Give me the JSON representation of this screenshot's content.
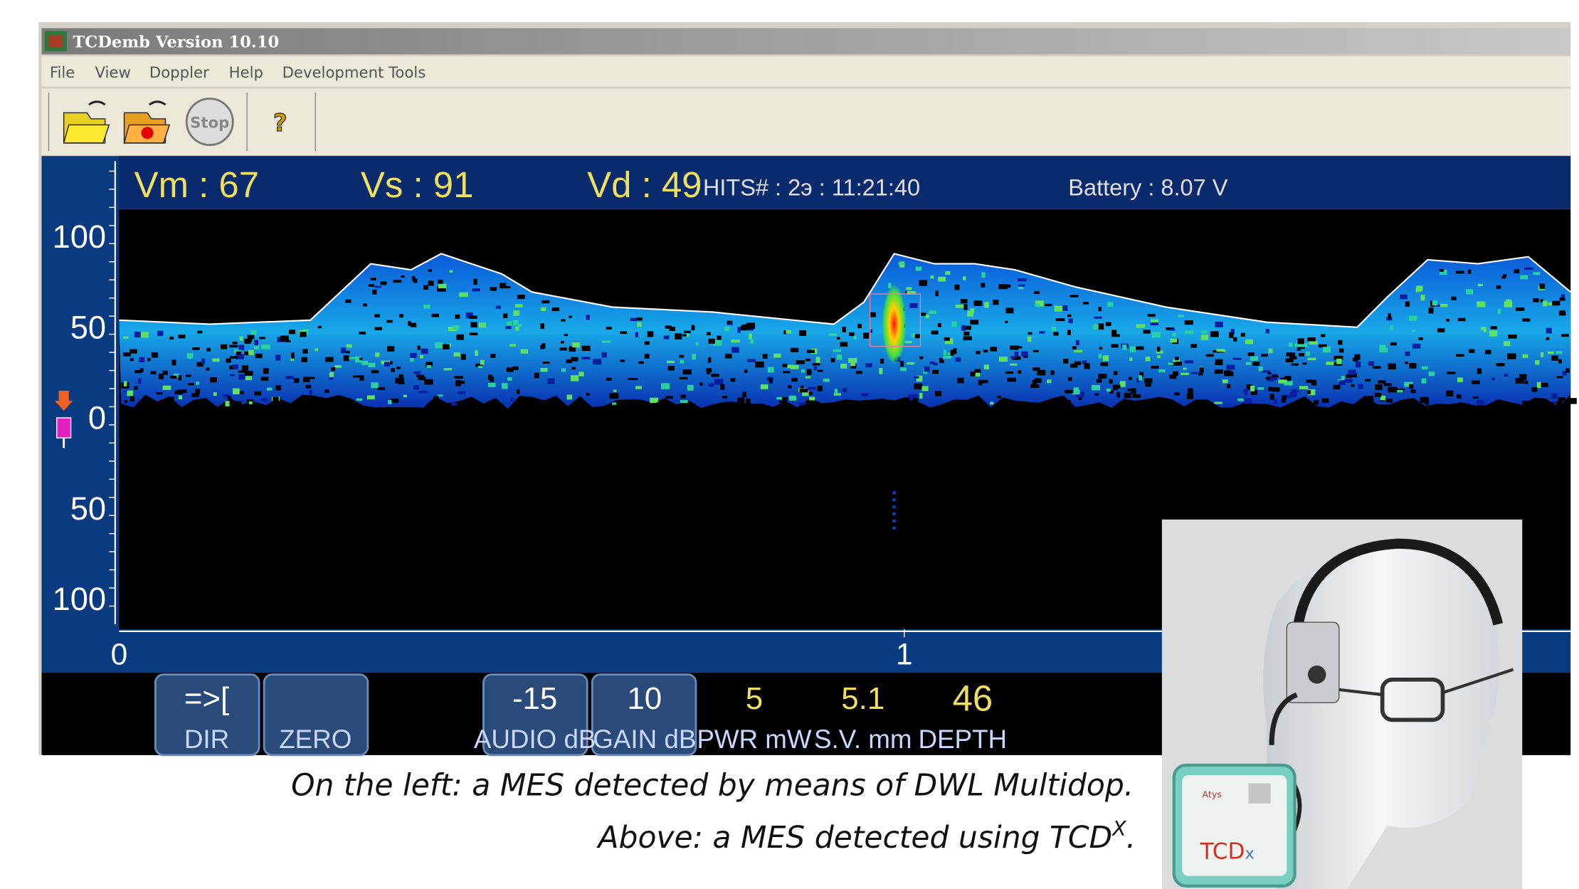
{
  "window": {
    "title": "TCDemb Version 10.10",
    "menu": [
      "File",
      "View",
      "Doppler",
      "Help",
      "Development Tools"
    ],
    "toolbar": {
      "stop": "Stop",
      "help": "?"
    }
  },
  "status": {
    "vm": "Vm : 67",
    "vs": "Vs : 91",
    "vd": "Vd : 49",
    "hits": "HITS# : 2э : 11:21:40",
    "battery": "Battery : 8.07 V"
  },
  "velocity_axis": [
    "100",
    "50",
    "0",
    "50",
    "100"
  ],
  "time_axis": [
    "0",
    "1"
  ],
  "controls": [
    {
      "value": "=>[",
      "label": "DIR"
    },
    {
      "label": "ZERO"
    },
    {
      "value": "-15",
      "label": "AUDIO dB"
    },
    {
      "value": "10",
      "label": "GAIN dB"
    },
    {
      "value": "5",
      "label": "PWR mW"
    },
    {
      "value": "5.1",
      "label": "S.V. mm"
    },
    {
      "value": "46",
      "label": "DEPTH"
    }
  ],
  "caption": {
    "line1": "On the left: a MES detected by means of DWL Multidop.",
    "line2": "Above: a MES detected using TCD",
    "sup": "X",
    "end": "."
  },
  "device": {
    "brand": "Atys",
    "name": "TCD",
    "suffix": "x"
  }
}
